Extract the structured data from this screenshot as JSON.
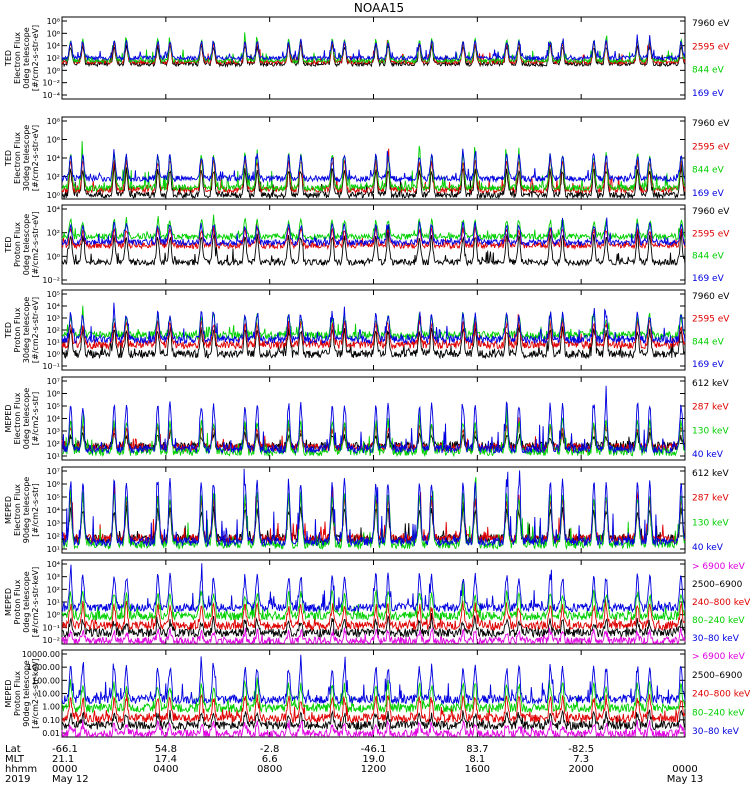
{
  "chart_data": {
    "title": "NOAA15",
    "type": "line",
    "x_range_hours": [
      0,
      24
    ],
    "panels": [
      {
        "ylabel": [
          "TED",
          "Electron Flux",
          "0deg telescope",
          "[#/cm2-s-str-eV]"
        ],
        "ytick_labels": [
          "10⁸",
          "10⁶",
          "10⁴",
          "10²",
          "10⁰",
          "10⁻²",
          "10⁻⁴"
        ],
        "yrange_exp": [
          -4,
          8
        ],
        "legend": [
          {
            "label": "7960 eV",
            "color": "#000000"
          },
          {
            "label": "2595 eV",
            "color": "#e00000"
          },
          {
            "label": "844 eV",
            "color": "#00d000"
          },
          {
            "label": "169 eV",
            "color": "#0000e0"
          }
        ],
        "series": [
          {
            "name": "7960 eV",
            "color": "#000000",
            "base": 1.1,
            "amp": 2.6
          },
          {
            "name": "2595 eV",
            "color": "#e00000",
            "base": 1.4,
            "amp": 2.8
          },
          {
            "name": "844 eV",
            "color": "#00d000",
            "base": 1.6,
            "amp": 3.0
          },
          {
            "name": "169 eV",
            "color": "#0000e0",
            "base": 2.0,
            "amp": 2.4
          }
        ]
      },
      {
        "ylabel": [
          "TED",
          "Electron Flux",
          "30deg telescope",
          "[#/cm2-s-str-eV]"
        ],
        "ytick_labels": [
          "10⁸",
          "10⁶",
          "10⁴",
          "10²",
          "10⁰"
        ],
        "yrange_exp": [
          0,
          8
        ],
        "legend": [
          {
            "label": "7960 eV",
            "color": "#000000"
          },
          {
            "label": "2595 eV",
            "color": "#e00000"
          },
          {
            "label": "844 eV",
            "color": "#00d000"
          },
          {
            "label": "169 eV",
            "color": "#0000e0"
          }
        ],
        "series": [
          {
            "name": "7960 eV",
            "color": "#000000",
            "base": 0.4,
            "amp": 2.4
          },
          {
            "name": "2595 eV",
            "color": "#e00000",
            "base": 0.9,
            "amp": 2.8
          },
          {
            "name": "844 eV",
            "color": "#00d000",
            "base": 1.1,
            "amp": 3.2
          },
          {
            "name": "169 eV",
            "color": "#0000e0",
            "base": 2.0,
            "amp": 2.2
          }
        ]
      },
      {
        "ylabel": [
          "TED",
          "Proton Flux",
          "0deg telescope",
          "[#/cm2-s-str-eV]"
        ],
        "ytick_labels": [
          "10⁴",
          "10²",
          "10⁰",
          "10⁻²"
        ],
        "yrange_exp": [
          -3,
          5
        ],
        "legend": [
          {
            "label": "7960 eV",
            "color": "#000000"
          },
          {
            "label": "2595 eV",
            "color": "#e00000"
          },
          {
            "label": "844 eV",
            "color": "#00d000"
          },
          {
            "label": "169 eV",
            "color": "#0000e0"
          }
        ],
        "series": [
          {
            "name": "7960 eV",
            "color": "#000000",
            "base": -0.8,
            "amp": 2.6
          },
          {
            "name": "2595 eV",
            "color": "#e00000",
            "base": 0.9,
            "amp": 1.6
          },
          {
            "name": "844 eV",
            "color": "#00d000",
            "base": 1.8,
            "amp": 1.6
          },
          {
            "name": "169 eV",
            "color": "#0000e0",
            "base": 1.2,
            "amp": 1.8
          }
        ]
      },
      {
        "ylabel": [
          "TED",
          "Proton Flux",
          "30deg telescope",
          "[#/cm2-s-str-eV]"
        ],
        "ytick_labels": [
          "10⁵",
          "10⁴",
          "10³",
          "10²",
          "10¹",
          "10⁰",
          "10⁻¹"
        ],
        "yrange_exp": [
          -1,
          5
        ],
        "legend": [
          {
            "label": "7960 eV",
            "color": "#000000"
          },
          {
            "label": "2595 eV",
            "color": "#e00000"
          },
          {
            "label": "844 eV",
            "color": "#00d000"
          },
          {
            "label": "169 eV",
            "color": "#0000e0"
          }
        ],
        "series": [
          {
            "name": "7960 eV",
            "color": "#000000",
            "base": 0.2,
            "amp": 1.8
          },
          {
            "name": "2595 eV",
            "color": "#e00000",
            "base": 0.9,
            "amp": 1.6
          },
          {
            "name": "844 eV",
            "color": "#00d000",
            "base": 1.6,
            "amp": 1.4
          },
          {
            "name": "169 eV",
            "color": "#0000e0",
            "base": 1.3,
            "amp": 1.9
          }
        ]
      },
      {
        "ylabel": [
          "MEPED",
          "Electron Flux",
          "0deg telescope",
          "[#/cm2-s-str]"
        ],
        "ytick_labels": [
          "10⁷",
          "10⁶",
          "10⁵",
          "10⁴",
          "10³",
          "10²",
          "10¹"
        ],
        "yrange_exp": [
          1,
          7
        ],
        "legend": [
          {
            "label": "612 keV",
            "color": "#000000"
          },
          {
            "label": "287 keV",
            "color": "#e00000"
          },
          {
            "label": "130 keV",
            "color": "#00d000"
          },
          {
            "label": "40 keV",
            "color": "#0000e0"
          }
        ],
        "series": [
          {
            "name": "612 keV",
            "color": "#000000",
            "base": 2.0,
            "amp": 0.8
          },
          {
            "name": "287 keV",
            "color": "#e00000",
            "base": 1.9,
            "amp": 1.4
          },
          {
            "name": "130 keV",
            "color": "#00d000",
            "base": 1.6,
            "amp": 2.2
          },
          {
            "name": "40 keV",
            "color": "#0000e0",
            "base": 1.8,
            "amp": 3.2
          }
        ]
      },
      {
        "ylabel": [
          "MEPED",
          "Electron Flux",
          "90deg telescope",
          "[#/cm2-s-str]"
        ],
        "ytick_labels": [
          "10⁷",
          "10⁶",
          "10⁵",
          "10⁴",
          "10³",
          "10²",
          "10¹"
        ],
        "yrange_exp": [
          1,
          7
        ],
        "legend": [
          {
            "label": "612 keV",
            "color": "#000000"
          },
          {
            "label": "287 keV",
            "color": "#e00000"
          },
          {
            "label": "130 keV",
            "color": "#00d000"
          },
          {
            "label": "40 keV",
            "color": "#0000e0"
          }
        ],
        "series": [
          {
            "name": "612 keV",
            "color": "#000000",
            "base": 2.0,
            "amp": 2.0
          },
          {
            "name": "287 keV",
            "color": "#e00000",
            "base": 2.0,
            "amp": 2.8
          },
          {
            "name": "130 keV",
            "color": "#00d000",
            "base": 1.6,
            "amp": 3.4
          },
          {
            "name": "40 keV",
            "color": "#0000e0",
            "base": 1.8,
            "amp": 4.2
          }
        ]
      },
      {
        "ylabel": [
          "MEPED",
          "Proton Flux",
          "0deg telescope",
          "[#/cm2-s-str-keV]"
        ],
        "ytick_labels": [
          "10⁴",
          "10³",
          "10²",
          "10¹",
          "10⁰",
          "10⁻¹",
          "10⁻²"
        ],
        "yrange_exp": [
          -2,
          4
        ],
        "legend": [
          {
            "label": "> 6900 keV",
            "color": "#e000e0"
          },
          {
            "label": "2500–6900",
            "color": "#000000"
          },
          {
            "label": "240–800 keV",
            "color": "#e00000"
          },
          {
            "label": "80–240 keV",
            "color": "#00d000"
          },
          {
            "label": "30–80 keV",
            "color": "#0000e0"
          }
        ],
        "series": [
          {
            "name": "> 6900 keV",
            "color": "#e000e0",
            "base": -1.8,
            "amp": 0.7
          },
          {
            "name": "2500–6900",
            "color": "#000000",
            "base": -1.2,
            "amp": 0.8
          },
          {
            "name": "240–800 keV",
            "color": "#e00000",
            "base": -0.7,
            "amp": 1.4
          },
          {
            "name": "80–240 keV",
            "color": "#00d000",
            "base": 0.0,
            "amp": 1.6
          },
          {
            "name": "30–80 keV",
            "color": "#0000e0",
            "base": 0.6,
            "amp": 2.2
          }
        ]
      },
      {
        "ylabel": [
          "MEPED",
          "Proton Flux",
          "90deg telescope",
          "[#/cm2-s-str-keV]"
        ],
        "ytick_labels": [
          "10000.00",
          "1000.00",
          "100.00",
          "10.00",
          "1.00",
          "0.10",
          "0.01"
        ],
        "yrange_exp": [
          -2,
          4
        ],
        "legend": [
          {
            "label": "> 6900 keV",
            "color": "#e000e0"
          },
          {
            "label": "2500–6900",
            "color": "#000000"
          },
          {
            "label": "240–800 keV",
            "color": "#e00000"
          },
          {
            "label": "80–240 keV",
            "color": "#00d000"
          },
          {
            "label": "30–80 keV",
            "color": "#0000e0"
          }
        ],
        "series": [
          {
            "name": "> 6900 keV",
            "color": "#e000e0",
            "base": -1.8,
            "amp": 0.7
          },
          {
            "name": "2500–6900",
            "color": "#000000",
            "base": -1.2,
            "amp": 0.8
          },
          {
            "name": "240–800 keV",
            "color": "#e00000",
            "base": -0.7,
            "amp": 1.4
          },
          {
            "name": "80–240 keV",
            "color": "#00d000",
            "base": 0.0,
            "amp": 1.6
          },
          {
            "name": "30–80 keV",
            "color": "#0000e0",
            "base": 0.6,
            "amp": 2.2
          }
        ]
      }
    ],
    "x_axis": {
      "row_labels": [
        "Lat",
        "MLT",
        "hhmm",
        "2019"
      ],
      "ticks": [
        {
          "hour": 0,
          "lat": "-66.1",
          "mlt": "21.1",
          "hhmm": "0000",
          "date": "May 12"
        },
        {
          "hour": 4,
          "lat": "54.8",
          "mlt": "17.4",
          "hhmm": "0400",
          "date": ""
        },
        {
          "hour": 8,
          "lat": "-2.8",
          "mlt": "6.6",
          "hhmm": "0800",
          "date": ""
        },
        {
          "hour": 12,
          "lat": "-46.1",
          "mlt": "19.0",
          "hhmm": "1200",
          "date": ""
        },
        {
          "hour": 16,
          "lat": "83.7",
          "mlt": "8.1",
          "hhmm": "1600",
          "date": ""
        },
        {
          "hour": 20,
          "lat": "-82.5",
          "mlt": "7.3",
          "hhmm": "2000",
          "date": ""
        },
        {
          "hour": 24,
          "lat": "",
          "mlt": "",
          "hhmm": "0000",
          "date": "May 13"
        }
      ]
    }
  }
}
